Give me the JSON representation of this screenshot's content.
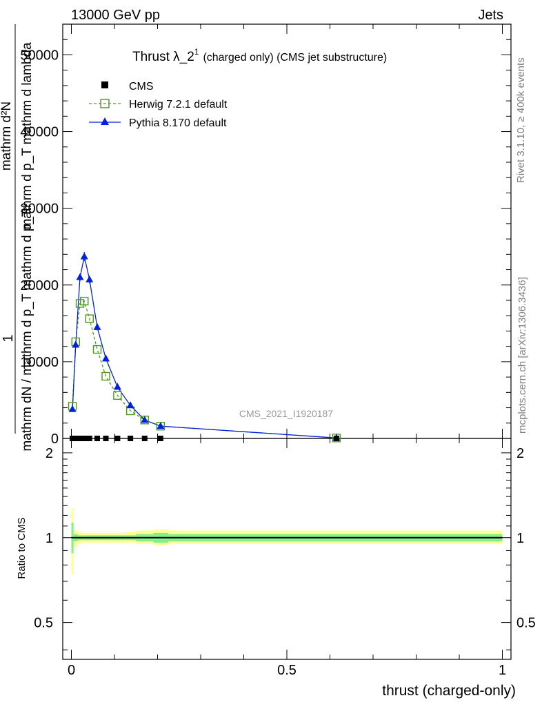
{
  "header": {
    "left": "13000 GeV pp",
    "right": "Jets"
  },
  "title": {
    "main": "Thrust λ_2",
    "sup": "1",
    "suffix": "(charged only) (CMS jet substructure)"
  },
  "side_text": {
    "rivet": "Rivet 3.1.10, ≥ 400k events",
    "mcplots": "mcplots.cern.ch [arXiv:1306.3436]"
  },
  "analysis_id": "CMS_2021_I1920187",
  "ylabel_main": {
    "one": "1",
    "frac_bottom": "mathrm dN / mathrm d p_T mathrm d p_T",
    "numerator": "mathrm d²N",
    "denominator": "mathrm d p_T mathrm d lambda"
  },
  "ylabel_ratio": "Ratio to CMS",
  "xlabel": "thrust (charged-only)",
  "colors": {
    "cms": "#000000",
    "herwig": "#4a9a1a",
    "pythia": "#0022dd",
    "band_outer": "#ffff99",
    "band_inner": "#88ee88"
  },
  "chart_data": [
    {
      "type": "line",
      "panel": "main",
      "xlim": [
        -0.02,
        1.02
      ],
      "ylim": [
        0,
        54000
      ],
      "yticks": [
        0,
        10000,
        20000,
        30000,
        40000,
        50000
      ],
      "ytick_labels": [
        "0",
        "10000",
        "20000",
        "30000",
        "40000",
        "50000"
      ],
      "legend": "top-left",
      "series": [
        {
          "name": "CMS",
          "x": [
            0.0025,
            0.01,
            0.02,
            0.03,
            0.042,
            0.06,
            0.08,
            0.107,
            0.137,
            0.17,
            0.207,
            0.615
          ],
          "values": [
            0,
            0,
            0,
            0,
            0,
            0,
            0,
            0,
            0,
            0,
            0,
            0
          ]
        },
        {
          "name": "Herwig 7.2.1 default",
          "x": [
            0.0025,
            0.01,
            0.02,
            0.03,
            0.042,
            0.06,
            0.08,
            0.107,
            0.137,
            0.17,
            0.207,
            0.615
          ],
          "values": [
            4200,
            12600,
            17600,
            17900,
            15600,
            11600,
            8100,
            5600,
            3600,
            2400,
            1600,
            60
          ]
        },
        {
          "name": "Pythia 8.170 default",
          "x": [
            0.0025,
            0.01,
            0.02,
            0.03,
            0.042,
            0.06,
            0.08,
            0.107,
            0.137,
            0.17,
            0.207,
            0.615
          ],
          "values": [
            3800,
            12200,
            21000,
            23700,
            20700,
            14500,
            10400,
            6700,
            4300,
            2400,
            1600,
            60
          ],
          "errors": [
            150,
            300,
            450,
            600,
            500,
            400,
            300,
            200,
            150,
            100,
            80,
            20
          ]
        }
      ]
    },
    {
      "type": "line",
      "panel": "ratio",
      "xlim": [
        -0.02,
        1.02
      ],
      "ylim": [
        0.37,
        2.25
      ],
      "yticks": [
        0.5,
        1,
        2
      ],
      "ytick_labels": [
        "0.5",
        "1",
        "2"
      ],
      "xticks": [
        0,
        0.5,
        1
      ],
      "xtick_labels": [
        "0",
        "0.5",
        "1"
      ],
      "series": [
        {
          "name": "CMS",
          "x": [
            0,
            1
          ],
          "values": [
            1,
            1
          ]
        }
      ],
      "bands": {
        "edges": [
          0,
          0.005,
          0.015,
          0.025,
          0.035,
          0.05,
          0.07,
          0.09,
          0.125,
          0.15,
          0.19,
          0.225,
          1.0
        ],
        "outer_low": [
          0.74,
          0.93,
          0.95,
          0.96,
          0.96,
          0.96,
          0.96,
          0.96,
          0.96,
          0.95,
          0.94,
          0.95
        ],
        "outer_high": [
          1.27,
          1.06,
          1.05,
          1.04,
          1.04,
          1.04,
          1.04,
          1.04,
          1.05,
          1.06,
          1.07,
          1.06
        ],
        "inner_low": [
          0.88,
          0.97,
          0.98,
          0.98,
          0.98,
          0.98,
          0.98,
          0.98,
          0.98,
          0.97,
          0.96,
          0.97
        ],
        "inner_high": [
          1.13,
          1.03,
          1.02,
          1.02,
          1.02,
          1.02,
          1.02,
          1.02,
          1.02,
          1.03,
          1.04,
          1.03
        ]
      }
    }
  ]
}
